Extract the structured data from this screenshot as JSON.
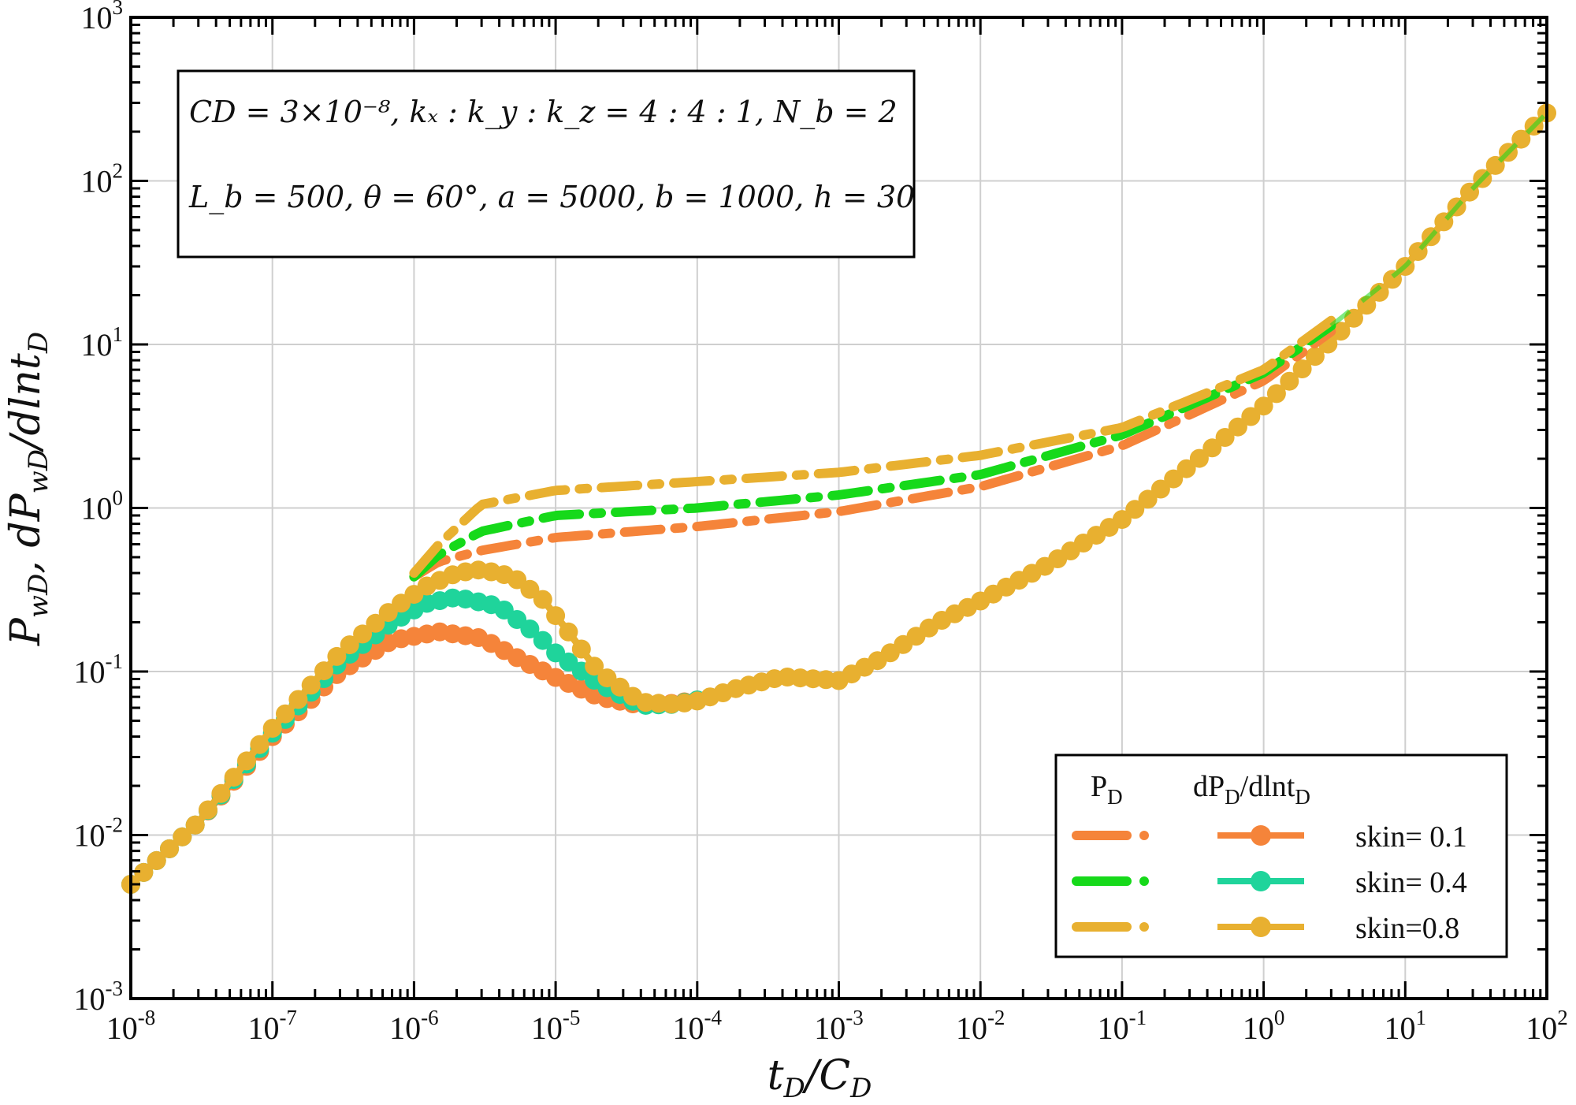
{
  "chart_data": {
    "type": "line",
    "x_scale": "log",
    "y_scale": "log",
    "xlim": [
      1e-08,
      100
    ],
    "ylim": [
      0.001,
      1000
    ],
    "grid": true,
    "x_tick_exponents": [
      "-8",
      "-7",
      "-6",
      "-5",
      "-4",
      "-3",
      "-2",
      "-1",
      "0",
      "1",
      "2"
    ],
    "y_tick_exponents": [
      "-3",
      "-2",
      "-1",
      "0",
      "1",
      "2",
      "3"
    ],
    "tick_base": "10",
    "xlabel": {
      "main": "t",
      "sub1": "D",
      "slash": "/C",
      "sub2": "D"
    },
    "ylabel": {
      "p": "P",
      "sub_wd": "wD",
      "mid": ", dP",
      "sub_wd2": "wD",
      "rest": "/dlnt",
      "sub_d": "D"
    },
    "info_box": {
      "line1": "CD = 3×10⁻⁸, kₓ : k_y : k_z = 4 : 4 : 1, N_b = 2",
      "line2": "L_b = 500, θ = 60°, a = 5000, b = 1000, h = 30"
    },
    "legend": {
      "placement": "bottom-right",
      "col1_header": "P",
      "col1_sub": "D",
      "col2_header": "dP",
      "col2_sub1": "D",
      "col2_mid": "/dlnt",
      "col2_sub2": "D"
    },
    "series": [
      {
        "name": "skin= 0.1",
        "color": "#F5843A",
        "pd": {
          "x": [
            1e-06,
            1.5e-06,
            3e-06,
            1e-05,
            0.0001,
            0.001,
            0.01,
            0.1,
            1,
            3
          ],
          "y": [
            0.38,
            0.47,
            0.55,
            0.66,
            0.77,
            0.95,
            1.35,
            2.4,
            6.0,
            12.0
          ]
        },
        "derivative": {
          "x": [
            1e-08,
            3e-08,
            1e-07,
            3e-07,
            7e-07,
            1.5e-06,
            3e-06,
            6e-06,
            1e-05,
            2e-05,
            4e-05,
            7e-05,
            0.0001
          ],
          "y": [
            0.005,
            0.012,
            0.04,
            0.1,
            0.155,
            0.175,
            0.16,
            0.115,
            0.092,
            0.07,
            0.062,
            0.064,
            0.067
          ]
        }
      },
      {
        "name": "skin= 0.4",
        "color": "#1FD49B",
        "pd_color": "#16D91A",
        "pd": {
          "x": [
            1e-06,
            1.5e-06,
            3e-06,
            1e-05,
            0.0001,
            0.001,
            0.01,
            0.1,
            1,
            3
          ],
          "y": [
            0.38,
            0.52,
            0.72,
            0.9,
            1.0,
            1.2,
            1.6,
            2.8,
            6.7,
            13.0
          ]
        },
        "derivative": {
          "x": [
            1e-08,
            3e-08,
            1e-07,
            3e-07,
            7e-07,
            1.2e-06,
            2e-06,
            4e-06,
            7e-06,
            1e-05,
            2e-05,
            4e-05,
            7e-05,
            0.0001
          ],
          "y": [
            0.005,
            0.012,
            0.042,
            0.115,
            0.2,
            0.26,
            0.285,
            0.25,
            0.175,
            0.13,
            0.085,
            0.062,
            0.063,
            0.067
          ]
        }
      },
      {
        "name": "skin=0.8",
        "color": "#E8B030",
        "pd": {
          "x": [
            1e-06,
            1.5e-06,
            3e-06,
            1e-05,
            0.0001,
            0.001,
            0.01,
            0.1,
            1,
            3
          ],
          "y": [
            0.4,
            0.6,
            1.05,
            1.28,
            1.45,
            1.65,
            2.1,
            3.1,
            7.0,
            14.0
          ]
        },
        "derivative": {
          "x": [
            1e-08,
            3e-08,
            1e-07,
            3e-07,
            7e-07,
            1.2e-06,
            2e-06,
            3e-06,
            5e-06,
            8e-06,
            1.2e-05,
            2e-05,
            4e-05,
            7e-05,
            0.0001,
            0.0002,
            0.0004,
            0.0007,
            0.001,
            0.002,
            0.005,
            0.01,
            0.03,
            0.1,
            0.3,
            1,
            3,
            10,
            30,
            100
          ],
          "y": [
            0.005,
            0.012,
            0.045,
            0.13,
            0.24,
            0.33,
            0.4,
            0.42,
            0.38,
            0.28,
            0.18,
            0.1,
            0.065,
            0.063,
            0.066,
            0.08,
            0.093,
            0.09,
            0.088,
            0.12,
            0.2,
            0.27,
            0.45,
            0.85,
            1.8,
            4.2,
            10.5,
            30,
            90,
            260
          ]
        }
      }
    ],
    "common_curve_late": {
      "x": [
        3,
        10,
        30,
        100
      ],
      "y": [
        13.0,
        30,
        90,
        260
      ]
    }
  }
}
